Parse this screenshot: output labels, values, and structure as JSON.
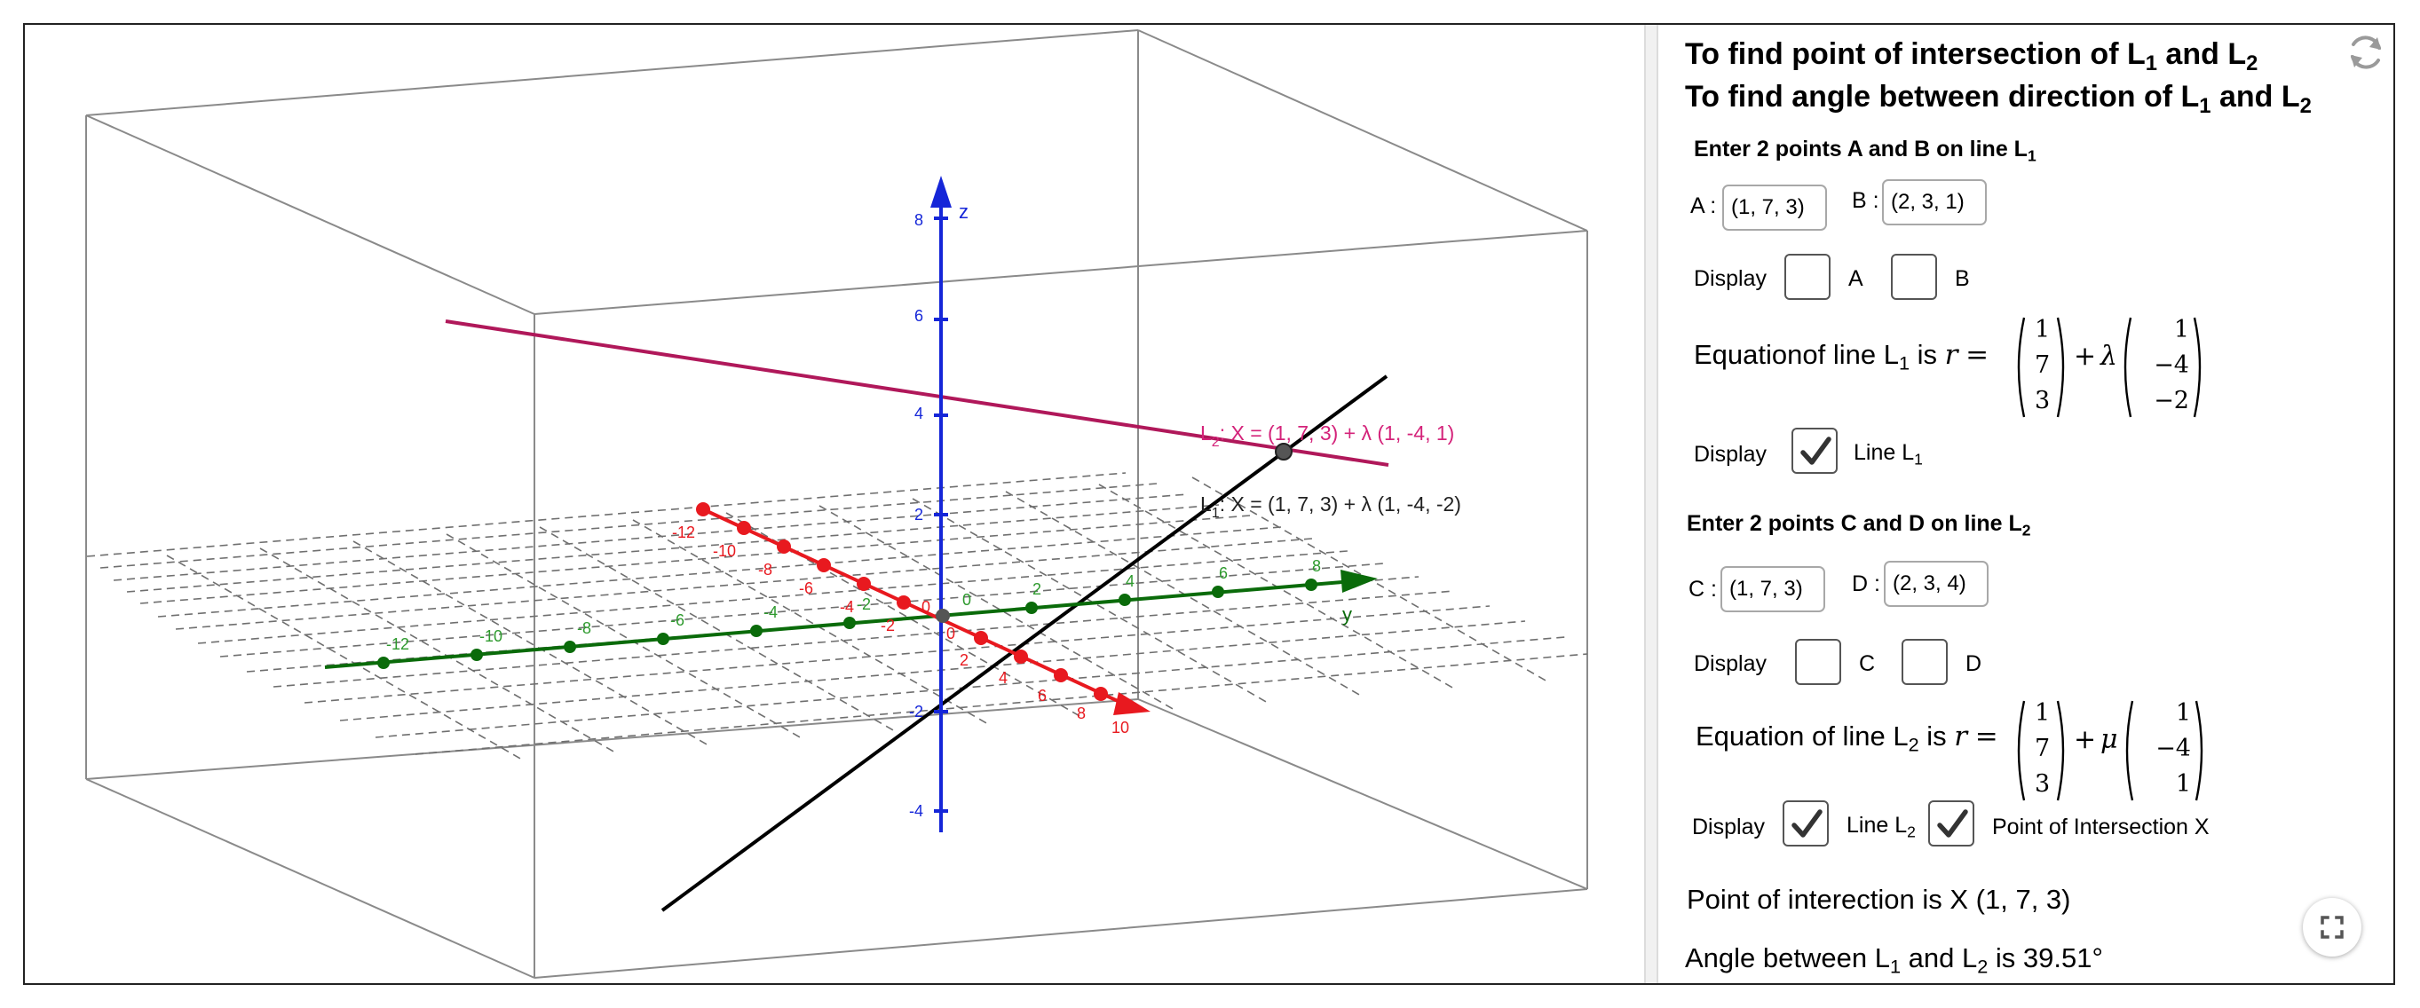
{
  "panel": {
    "title1": {
      "pre": "To find point of intersection of L",
      "s1": "1",
      "mid": " and L",
      "s2": "2"
    },
    "title2": {
      "pre": "To find angle between direction of  L",
      "s1": "1",
      "mid": " and L",
      "s2": "2"
    },
    "line1_heading": {
      "pre": "Enter 2 points A and B on line L",
      "sub": "1"
    },
    "pointA_label": "A :",
    "pointA_value": "(1, 7, 3)",
    "pointB_label": "B :",
    "pointB_value": "(2, 3, 1)",
    "display_label": "Display",
    "cb_A_label": "A",
    "cb_B_label": "B",
    "cb_line1_label": {
      "pre": "Line L",
      "sub": "1"
    },
    "equation1": {
      "pre": "Equationof line L",
      "sub": "1",
      "is": " is ",
      "r": "r",
      "eq": "=",
      "point": [
        "1",
        "7",
        "3"
      ],
      "plus": "+",
      "param": "λ",
      "dir": [
        "1",
        "−4",
        "−2"
      ]
    },
    "line2_heading": {
      "pre": "Enter 2 points C and D on line L",
      "sub": "2"
    },
    "pointC_label": "C :",
    "pointC_value": "(1, 7, 3)",
    "pointD_label": "D :",
    "pointD_value": "(2, 3, 4)",
    "cb_C_label": "C",
    "cb_D_label": "D",
    "cb_line2_label": {
      "pre": "Line L",
      "sub": "2"
    },
    "cb_intersection_label": "Point of Intersection X",
    "equation2": {
      "pre": "Equation of line L",
      "sub": "2",
      "is": " is ",
      "r": "r",
      "eq": "=",
      "point": [
        "1",
        "7",
        "3"
      ],
      "plus": "+",
      "param": "μ",
      "dir": [
        "1",
        "−4",
        "1"
      ]
    },
    "intersection_text": "Point of interection is X (1, 7, 3)",
    "angle_text": {
      "pre": "Angle between L",
      "s1": "1",
      "mid": " and L",
      "s2": "2",
      "post": " is 39.51°"
    },
    "checkboxes": {
      "A": false,
      "B": false,
      "line1": true,
      "C": false,
      "D": false,
      "line2": true,
      "intersection": true
    }
  },
  "graphics": {
    "axis_labels": {
      "z": "z",
      "y": "y"
    },
    "z_ticks": [
      "8",
      "6",
      "4",
      "2",
      "-2",
      "-4"
    ],
    "y_ticks": [
      "-12",
      "-10",
      "-8",
      "-6",
      "-4",
      "-2",
      "2",
      "4",
      "6",
      "8"
    ],
    "x_ticks": [
      "-12",
      "-10",
      "-8",
      "-6",
      "-4",
      "-2",
      "2",
      "4",
      "6",
      "8",
      "10"
    ],
    "origin_labels": [
      "0",
      "0",
      "0"
    ],
    "line2_label": {
      "pre": "L",
      "sub": "2",
      "text": ": X = (1, 7, 3) + λ (1, -4, 1)"
    },
    "line1_label": {
      "pre": "L",
      "sub": "1",
      "text": ": X = (1, 7, 3) + λ (1, -4, -2)"
    },
    "colors": {
      "x_axis": "#e8191f",
      "y_axis": "#0a6b0a",
      "z_axis": "#1526d8",
      "line1": "#000000",
      "line2": "#b0185a",
      "grid": "#6f6f6f",
      "box": "#8a8a8a"
    }
  },
  "icons": [
    "reset-icon",
    "fullscreen-icon",
    "checkmark-icon"
  ]
}
